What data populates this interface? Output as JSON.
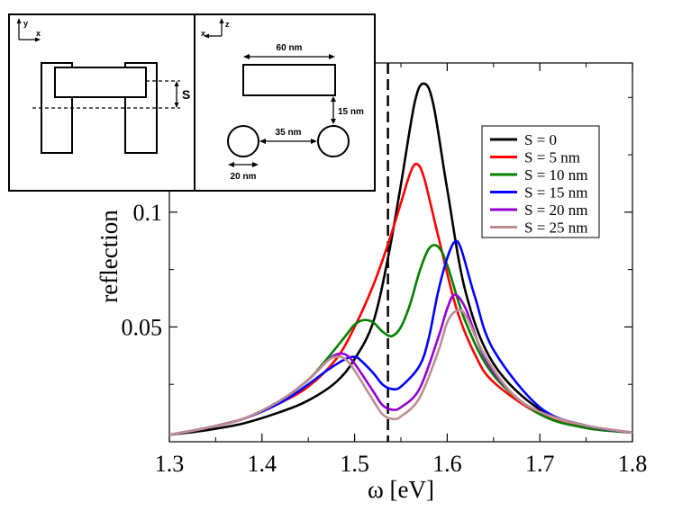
{
  "chart_data": {
    "type": "line",
    "xlabel": "ω [eV]",
    "ylabel": "reflection",
    "xlim": [
      1.3,
      1.8
    ],
    "ylim": [
      0.0,
      0.165
    ],
    "x_ticks": [
      1.3,
      1.4,
      1.5,
      1.6,
      1.7,
      1.8
    ],
    "x_tick_labels": [
      "1.3",
      "1.4",
      "1.5",
      "1.6",
      "1.7",
      "1.8"
    ],
    "y_ticks": [
      0.05,
      0.1
    ],
    "y_tick_labels": [
      "0.05",
      "0.1"
    ],
    "vline_x": 1.536,
    "legend_position": "top-right",
    "series": [
      {
        "name": "S = 0",
        "color": "#000000",
        "x": [
          1.3,
          1.34,
          1.38,
          1.42,
          1.45,
          1.48,
          1.5,
          1.52,
          1.536,
          1.55,
          1.565,
          1.575,
          1.585,
          1.6,
          1.62,
          1.65,
          1.7,
          1.75,
          1.8
        ],
        "y": [
          0.003,
          0.005,
          0.008,
          0.013,
          0.018,
          0.026,
          0.036,
          0.052,
          0.08,
          0.112,
          0.148,
          0.156,
          0.147,
          0.11,
          0.065,
          0.034,
          0.014,
          0.007,
          0.004
        ]
      },
      {
        "name": "S = 5 nm",
        "color": "#ff0000",
        "x": [
          1.3,
          1.34,
          1.38,
          1.42,
          1.45,
          1.48,
          1.5,
          1.52,
          1.536,
          1.55,
          1.56,
          1.567,
          1.575,
          1.59,
          1.61,
          1.63,
          1.65,
          1.7,
          1.75,
          1.8
        ],
        "y": [
          0.003,
          0.006,
          0.01,
          0.017,
          0.024,
          0.036,
          0.05,
          0.068,
          0.086,
          0.104,
          0.117,
          0.121,
          0.115,
          0.09,
          0.058,
          0.038,
          0.026,
          0.012,
          0.006,
          0.004
        ]
      },
      {
        "name": "S = 10 nm",
        "color": "#008000",
        "x": [
          1.3,
          1.34,
          1.38,
          1.42,
          1.45,
          1.47,
          1.49,
          1.5,
          1.51,
          1.52,
          1.53,
          1.54,
          1.55,
          1.56,
          1.57,
          1.58,
          1.59,
          1.6,
          1.62,
          1.65,
          1.7,
          1.75,
          1.8
        ],
        "y": [
          0.003,
          0.006,
          0.01,
          0.018,
          0.027,
          0.036,
          0.046,
          0.051,
          0.053,
          0.052,
          0.048,
          0.046,
          0.05,
          0.06,
          0.074,
          0.084,
          0.085,
          0.077,
          0.052,
          0.029,
          0.012,
          0.006,
          0.004
        ]
      },
      {
        "name": "S = 15 nm",
        "color": "#0000ff",
        "x": [
          1.3,
          1.34,
          1.38,
          1.42,
          1.45,
          1.47,
          1.49,
          1.5,
          1.505,
          1.52,
          1.53,
          1.54,
          1.55,
          1.57,
          1.58,
          1.59,
          1.6,
          1.608,
          1.615,
          1.63,
          1.65,
          1.7,
          1.75,
          1.8
        ],
        "y": [
          0.003,
          0.006,
          0.01,
          0.017,
          0.025,
          0.031,
          0.036,
          0.037,
          0.036,
          0.03,
          0.025,
          0.023,
          0.024,
          0.033,
          0.045,
          0.065,
          0.08,
          0.087,
          0.084,
          0.063,
          0.04,
          0.015,
          0.007,
          0.004
        ]
      },
      {
        "name": "S = 20 nm",
        "color": "#9400d3",
        "x": [
          1.3,
          1.34,
          1.38,
          1.42,
          1.45,
          1.47,
          1.48,
          1.49,
          1.5,
          1.52,
          1.53,
          1.54,
          1.55,
          1.57,
          1.59,
          1.6,
          1.608,
          1.62,
          1.64,
          1.67,
          1.7,
          1.75,
          1.8
        ],
        "y": [
          0.003,
          0.006,
          0.01,
          0.018,
          0.027,
          0.035,
          0.038,
          0.038,
          0.034,
          0.022,
          0.016,
          0.014,
          0.015,
          0.023,
          0.045,
          0.058,
          0.064,
          0.058,
          0.037,
          0.021,
          0.013,
          0.007,
          0.004
        ]
      },
      {
        "name": "S = 25 nm",
        "color": "#bc8f8f",
        "x": [
          1.3,
          1.34,
          1.38,
          1.42,
          1.45,
          1.47,
          1.48,
          1.49,
          1.5,
          1.52,
          1.53,
          1.54,
          1.55,
          1.57,
          1.59,
          1.6,
          1.61,
          1.62,
          1.64,
          1.67,
          1.7,
          1.75,
          1.8
        ],
        "y": [
          0.003,
          0.006,
          0.01,
          0.018,
          0.027,
          0.035,
          0.037,
          0.036,
          0.031,
          0.018,
          0.012,
          0.01,
          0.011,
          0.019,
          0.039,
          0.052,
          0.057,
          0.055,
          0.038,
          0.021,
          0.013,
          0.007,
          0.004
        ]
      }
    ],
    "inset": {
      "left_axes": {
        "vertical": "y",
        "horizontal": "x"
      },
      "offset_label": "S",
      "right_axes": {
        "vertical": "z",
        "horizontal": "x"
      },
      "dim_top": "60 nm",
      "dim_gap": "15 nm",
      "dim_spacing": "35 nm",
      "dim_diameter": "20 nm"
    }
  }
}
